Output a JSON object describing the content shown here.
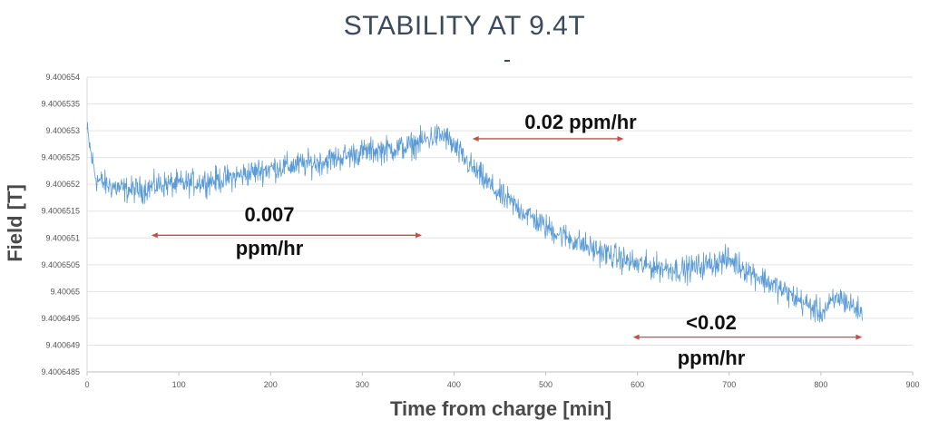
{
  "chart_data": {
    "type": "line",
    "title": "STABILITY AT 9.4T",
    "xlabel": "Time from charge [min]",
    "ylabel": "Field [T]",
    "xlim": [
      0,
      900
    ],
    "ylim": [
      9.4006485,
      9.400654
    ],
    "x_ticks": [
      "0",
      "100",
      "200",
      "300",
      "400",
      "500",
      "600",
      "700",
      "800",
      "900"
    ],
    "y_ticks": [
      "9.400654",
      "9.4006535",
      "9.400653",
      "9.4006525",
      "9.400652",
      "9.4006515",
      "9.400651",
      "9.4006505",
      "9.40065",
      "9.4006495",
      "9.400649",
      "9.4006485"
    ],
    "grid": "horizontal",
    "series_color": "#5b9bd5",
    "arrow_color": "#c0504d",
    "series": [
      {
        "x": [
          0,
          5,
          10,
          20,
          40,
          60,
          80,
          100,
          150,
          200,
          250,
          300,
          350,
          380,
          390,
          400,
          420,
          450,
          500,
          550,
          600,
          650,
          700,
          720,
          750,
          800,
          820,
          845
        ],
        "values": [
          9.400653,
          9.4006525,
          9.4006521,
          9.400652,
          9.4006519,
          9.4006519,
          9.400652,
          9.400652,
          9.4006521,
          9.4006523,
          9.4006524,
          9.4006526,
          9.4006527,
          9.4006529,
          9.4006529,
          9.4006527,
          9.4006523,
          9.4006518,
          9.4006512,
          9.4006508,
          9.4006505,
          9.4006504,
          9.4006506,
          9.4006504,
          9.4006501,
          9.4006496,
          9.4006499,
          9.4006496
        ]
      }
    ],
    "annotations": [
      {
        "lines": [
          "0.007",
          "ppm/hr"
        ],
        "arrow_from": 70,
        "arrow_to": 365,
        "arrow_y": 9.40065105
      },
      {
        "lines": [
          "0.02 ppm/hr"
        ],
        "arrow_from": 420,
        "arrow_to": 585,
        "arrow_y": 9.40065285
      },
      {
        "lines": [
          "<0.02",
          "ppm/hr"
        ],
        "arrow_from": 595,
        "arrow_to": 845,
        "arrow_y": 9.40064915
      }
    ]
  }
}
